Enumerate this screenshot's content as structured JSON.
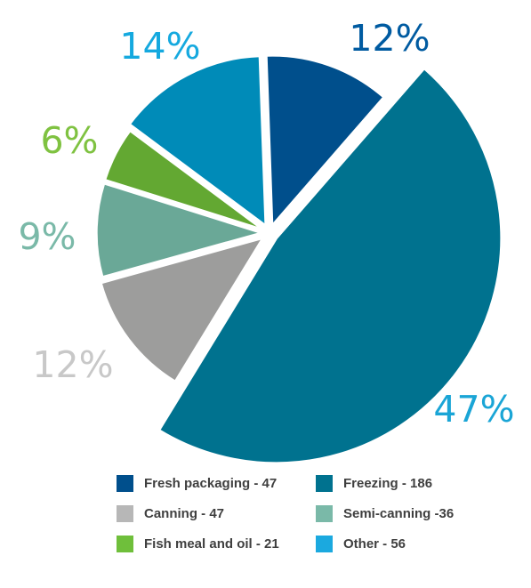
{
  "chart_data": {
    "type": "pie",
    "slices": [
      {
        "label": "Fresh packaging",
        "value": 47,
        "percent_label": "12%",
        "color": "#004f8c",
        "label_color": "#005ba1"
      },
      {
        "label": "Freezing",
        "value": 186,
        "percent_label": "47%",
        "color": "#00728f",
        "label_color": "#1aa5d6"
      },
      {
        "label": "Canning",
        "value": 47,
        "percent_label": "12%",
        "color": "#9d9d9c",
        "label_color": "#c8c8c8"
      },
      {
        "label": "Semi-canning",
        "value": 36,
        "percent_label": "9%",
        "color": "#6aa897",
        "label_color": "#7ab9a8"
      },
      {
        "label": "Fish meal and oil",
        "value": 21,
        "percent_label": "6%",
        "color": "#63a832",
        "label_color": "#7fc241"
      },
      {
        "label": "Other",
        "value": 56,
        "percent_label": "14%",
        "color": "#008bb8",
        "label_color": "#15a9df"
      }
    ],
    "legend": {
      "placement": "bottom",
      "items": [
        {
          "text": "Fresh packaging - 47",
          "color": "#004f8c"
        },
        {
          "text": "Freezing - 186",
          "color": "#00728f"
        },
        {
          "text": "Canning - 47",
          "color": "#b7b7b7"
        },
        {
          "text": "Semi-canning -36",
          "color": "#7ab9a8"
        },
        {
          "text": "Fish meal and oil - 21",
          "color": "#6fbf3b"
        },
        {
          "text": "Other - 56",
          "color": "#1ba9df"
        }
      ]
    }
  }
}
